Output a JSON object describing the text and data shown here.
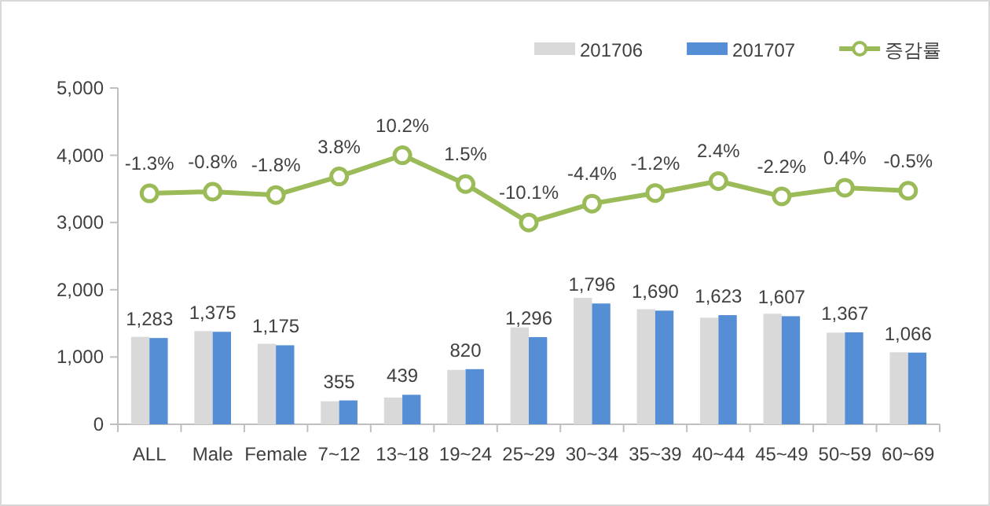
{
  "chart_data": {
    "type": "bar",
    "categories": [
      "ALL",
      "Male",
      "Female",
      "7~12",
      "13~18",
      "19~24",
      "25~29",
      "30~34",
      "35~39",
      "40~44",
      "45~49",
      "50~59",
      "60~69"
    ],
    "ylim": [
      0,
      5000
    ],
    "yticks": [
      {
        "value": 0,
        "label": "0"
      },
      {
        "value": 1000,
        "label": "1,000"
      },
      {
        "value": 2000,
        "label": "2,000"
      },
      {
        "value": 3000,
        "label": "3,000"
      },
      {
        "value": 4000,
        "label": "4,000"
      },
      {
        "value": 5000,
        "label": "5,000"
      }
    ],
    "y2lim": [
      -71,
      30.5
    ],
    "legend": "top right",
    "grid": false,
    "marker": "circle",
    "series": [
      {
        "name": "201706",
        "color": "#d9d9d9",
        "values": [
          1300,
          1386,
          1197,
          342,
          398,
          808,
          1441,
          1879,
          1711,
          1585,
          1643,
          1362,
          1071
        ]
      },
      {
        "name": "201707",
        "color": "#558ed5",
        "values": [
          1283,
          1375,
          1175,
          355,
          439,
          820,
          1296,
          1796,
          1690,
          1623,
          1607,
          1367,
          1066
        ],
        "value_labels": [
          "1,283",
          "1,375",
          "1,175",
          "355",
          "439",
          "820",
          "1,296",
          "1,796",
          "1,690",
          "1,623",
          "1,607",
          "1,367",
          "1,066"
        ]
      },
      {
        "name": "증감률",
        "type": "line",
        "axis": "y2",
        "color": "#9bbb59",
        "values": [
          -1.3,
          -0.8,
          -1.8,
          3.8,
          10.2,
          1.5,
          -10.1,
          -4.4,
          -1.2,
          2.4,
          -2.2,
          0.4,
          -0.5
        ],
        "value_labels": [
          "-1.3%",
          "-0.8%",
          "-1.8%",
          "3.8%",
          "10.2%",
          "1.5%",
          "-10.1%",
          "-4.4%",
          "-1.2%",
          "2.4%",
          "-2.2%",
          "0.4%",
          "-0.5%"
        ]
      }
    ]
  }
}
